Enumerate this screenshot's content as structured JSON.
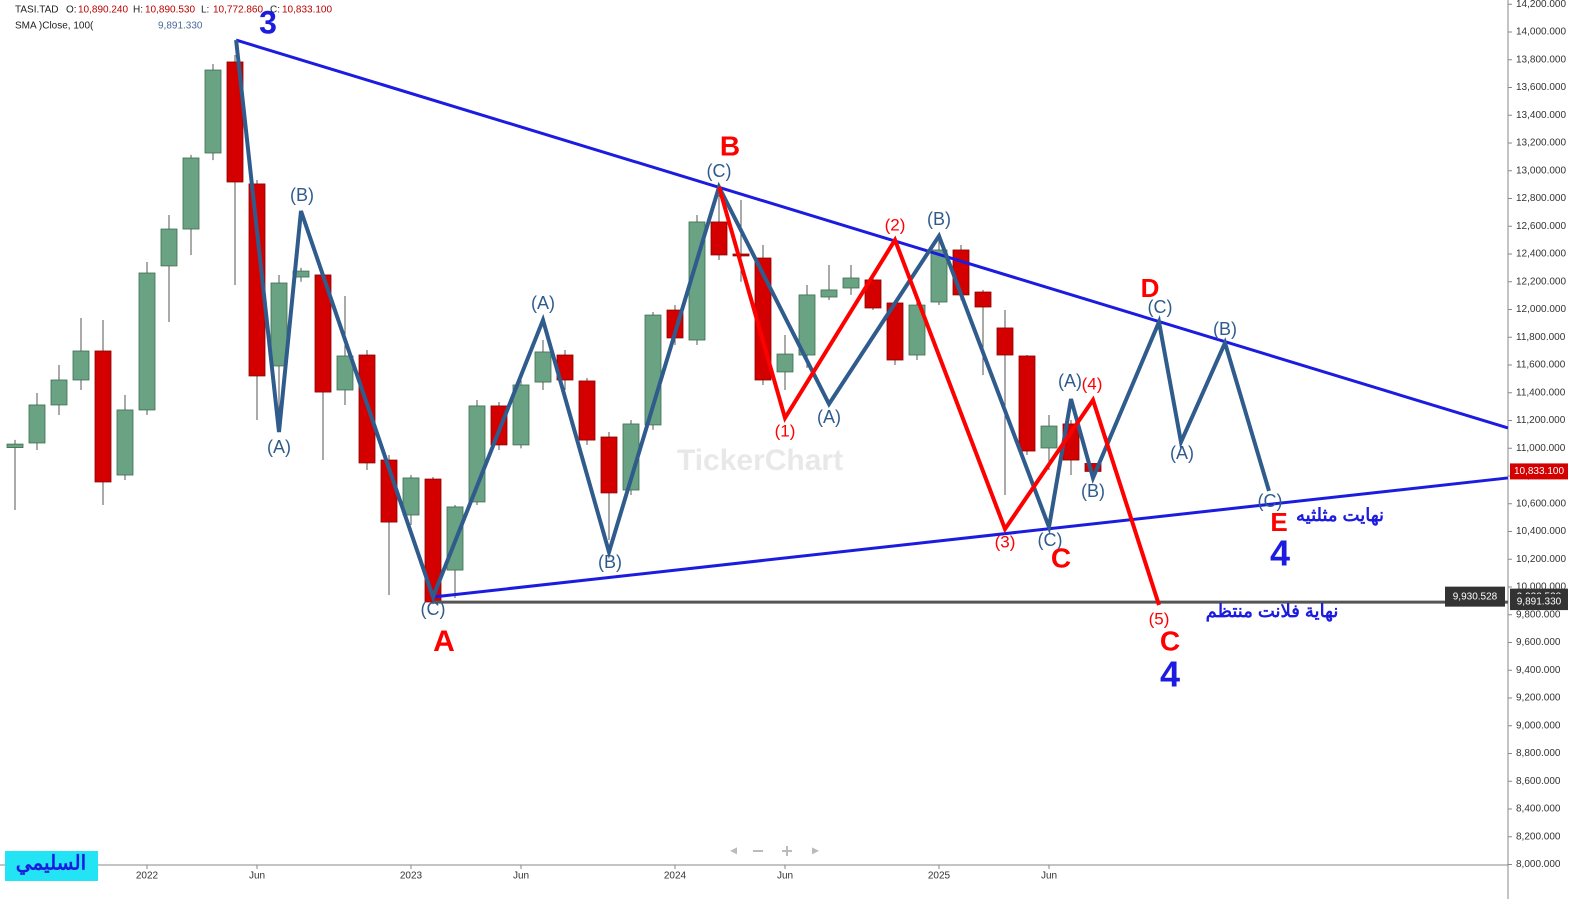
{
  "chart_data": {
    "type": "candlestick",
    "header": {
      "symbol": "TASI.TAD",
      "keys": [
        "O:",
        "H:",
        "L:",
        "C:"
      ],
      "last_labels": [
        "10,890.240",
        "10,890.530",
        "10,772.860",
        "10,833.100"
      ]
    },
    "sma": {
      "label": "SMA  )Close, 100(",
      "value": 9891.33,
      "value_label": "9,891.330",
      "color": "#555555"
    },
    "level": {
      "value": 9930.528,
      "label": "9,930.528"
    },
    "x": [
      null,
      null,
      null,
      null,
      null,
      null,
      "2022",
      null,
      null,
      null,
      null,
      "Jun",
      null,
      null,
      null,
      null,
      null,
      null,
      "2023",
      null,
      null,
      null,
      null,
      "Jun",
      null,
      null,
      null,
      null,
      null,
      null,
      "2024",
      null,
      null,
      null,
      null,
      "Jun",
      null,
      null,
      null,
      null,
      null,
      null,
      "2025",
      null,
      null,
      null,
      null,
      "Jun",
      null,
      null
    ],
    "ohlc": [
      [
        11005,
        11060,
        10555,
        11030
      ],
      [
        11038,
        11398,
        10987,
        11312
      ],
      [
        11312,
        11600,
        11240,
        11492
      ],
      [
        11492,
        11939,
        11420,
        11701
      ],
      [
        11701,
        11924,
        10591,
        10757
      ],
      [
        10807,
        11384,
        10771,
        11276
      ],
      [
        11276,
        12342,
        11240,
        12263
      ],
      [
        12314,
        12681,
        11910,
        12580
      ],
      [
        12580,
        13114,
        12393,
        13092
      ],
      [
        13128,
        13769,
        13077,
        13726
      ],
      [
        13784,
        13834,
        12177,
        12919
      ],
      [
        12905,
        12933,
        11204,
        11521
      ],
      [
        11593,
        12249,
        11240,
        12191
      ],
      [
        12234,
        12300,
        12200,
        12277
      ],
      [
        12249,
        12285,
        10915,
        11405
      ],
      [
        11420,
        12097,
        11312,
        11665
      ],
      [
        11672,
        11708,
        10843,
        10894
      ],
      [
        10915,
        10951,
        9942,
        10468
      ],
      [
        10519,
        10807,
        10447,
        10786
      ],
      [
        10778,
        10793,
        9877,
        9892
      ],
      [
        10122,
        10591,
        9921,
        10577
      ],
      [
        10613,
        11348,
        10591,
        11305
      ],
      [
        11305,
        11333,
        10987,
        11024
      ],
      [
        11024,
        11492,
        10999,
        11456
      ],
      [
        11477,
        11780,
        11420,
        11694
      ],
      [
        11672,
        11708,
        11420,
        11492
      ],
      [
        11485,
        11506,
        11024,
        11059
      ],
      [
        11081,
        11117,
        10339,
        10678
      ],
      [
        10699,
        11204,
        10663,
        11175
      ],
      [
        11168,
        11982,
        11132,
        11960
      ],
      [
        11996,
        12032,
        11744,
        11795
      ],
      [
        11780,
        12681,
        11744,
        12631
      ],
      [
        12631,
        12825,
        12357,
        12393
      ],
      [
        12400,
        12789,
        12200,
        12386
      ],
      [
        12371,
        12465,
        11456,
        11492
      ],
      [
        11550,
        11816,
        11420,
        11679
      ],
      [
        11672,
        12177,
        11578,
        12105
      ],
      [
        12090,
        12321,
        12068,
        12141
      ],
      [
        12155,
        12321,
        12105,
        12227
      ],
      [
        12213,
        12249,
        11996,
        12011
      ],
      [
        12047,
        12068,
        11600,
        11636
      ],
      [
        11672,
        12068,
        11636,
        12032
      ],
      [
        12054,
        12501,
        12032,
        12429
      ],
      [
        12429,
        12465,
        12068,
        12105
      ],
      [
        12126,
        12141,
        11528,
        12018
      ],
      [
        11867,
        11996,
        10663,
        11672
      ],
      [
        11665,
        11672,
        10951,
        10980
      ],
      [
        11002,
        11240,
        10843,
        11160
      ],
      [
        11175,
        11204,
        10807,
        10915
      ],
      [
        10890.24,
        10890.53,
        10772.86,
        10833.1
      ]
    ],
    "up_color": "#6aa383",
    "down_color": "#d40000",
    "ylim": [
      7990,
      14230
    ],
    "yticks": [
      {
        "value": 8000,
        "label": "8,000.000"
      },
      {
        "value": 8200,
        "label": "8,200.000"
      },
      {
        "value": 8400,
        "label": "8,400.000"
      },
      {
        "value": 8600,
        "label": "8,600.000"
      },
      {
        "value": 8800,
        "label": "8,800.000"
      },
      {
        "value": 9000,
        "label": "9,000.000"
      },
      {
        "value": 9200,
        "label": "9,200.000"
      },
      {
        "value": 9400,
        "label": "9,400.000"
      },
      {
        "value": 9600,
        "label": "9,600.000"
      },
      {
        "value": 9800,
        "label": "9,800.000"
      },
      {
        "value": 10000,
        "label": "10,000.000"
      },
      {
        "value": 10200,
        "label": "10,200.000"
      },
      {
        "value": 10400,
        "label": "10,400.000"
      },
      {
        "value": 10600,
        "label": "10,600.000"
      },
      {
        "value": 10800,
        "label": "10,800.000"
      },
      {
        "value": 11000,
        "label": "11,000.000"
      },
      {
        "value": 11200,
        "label": "11,200.000"
      },
      {
        "value": 11400,
        "label": "11,400.000"
      },
      {
        "value": 11600,
        "label": "11,600.000"
      },
      {
        "value": 11800,
        "label": "11,800.000"
      },
      {
        "value": 12000,
        "label": "12,000.000"
      },
      {
        "value": 12200,
        "label": "12,200.000"
      },
      {
        "value": 12400,
        "label": "12,400.000"
      },
      {
        "value": 12600,
        "label": "12,600.000"
      },
      {
        "value": 12800,
        "label": "12,800.000"
      },
      {
        "value": 13000,
        "label": "13,000.000"
      },
      {
        "value": 13200,
        "label": "13,200.000"
      },
      {
        "value": 13400,
        "label": "13,400.000"
      },
      {
        "value": 13600,
        "label": "13,600.000"
      },
      {
        "value": 13800,
        "label": "13,800.000"
      },
      {
        "value": 14000,
        "label": "14,000.000"
      },
      {
        "value": 14200,
        "label": "14,200.000"
      }
    ],
    "drawings": [
      {
        "color": "#1c1ce0",
        "x": [
          10.05,
          67.86
        ],
        "y": [
          13942,
          11146
        ]
      },
      {
        "color": "#1c1ce0",
        "x": [
          19,
          67.86
        ],
        "y": [
          9928,
          10786
        ]
      },
      {
        "color": "#2f5c8c",
        "x": [
          10.05,
          12,
          13,
          19,
          24,
          27,
          32,
          37,
          42,
          47,
          48,
          49,
          52,
          53,
          55,
          57
        ],
        "y": [
          13942,
          11117,
          12710,
          9928,
          11924,
          10252,
          12883,
          11319,
          12530,
          10432,
          11355,
          10786,
          11910,
          11045,
          11759,
          10692
        ]
      },
      {
        "color": "#ff0000",
        "x": [
          32,
          35,
          40,
          45,
          49,
          52
        ],
        "y": [
          12883,
          11218,
          12501,
          10418,
          11348,
          9870
        ]
      }
    ],
    "wave_labels": [
      {
        "text": "3",
        "color": "#1c1ce0"
      },
      {
        "text": "(B)",
        "color": "#2f5c8c"
      },
      {
        "text": "(A)",
        "color": "#2f5c8c"
      },
      {
        "text": "(C)",
        "color": "#2f5c8c"
      },
      {
        "text": "A",
        "color": "#ff0000"
      },
      {
        "text": "(A)",
        "color": "#2f5c8c"
      },
      {
        "text": "(B)",
        "color": "#2f5c8c"
      },
      {
        "text": "B",
        "color": "#ff0000"
      },
      {
        "text": "(C)",
        "color": "#2f5c8c"
      },
      {
        "text": "(1)",
        "color": "#ff0000"
      },
      {
        "text": "(A)",
        "color": "#2f5c8c"
      },
      {
        "text": "(2)",
        "color": "#ff0000"
      },
      {
        "text": "(B)",
        "color": "#2f5c8c"
      },
      {
        "text": "(3)",
        "color": "#ff0000"
      },
      {
        "text": "(C)",
        "color": "#2f5c8c"
      },
      {
        "text": "C",
        "color": "#ff0000"
      },
      {
        "text": "(A)",
        "color": "#2f5c8c"
      },
      {
        "text": "(4)",
        "color": "#ff0000"
      },
      {
        "text": "(B)",
        "color": "#2f5c8c"
      },
      {
        "text": "D",
        "color": "#ff0000"
      },
      {
        "text": "(C)",
        "color": "#2f5c8c"
      },
      {
        "text": "(B)",
        "color": "#2f5c8c"
      },
      {
        "text": "(A)",
        "color": "#2f5c8c"
      },
      {
        "text": "(C)",
        "color": "#2f5c8c"
      },
      {
        "text": "E",
        "color": "#ff0000"
      },
      {
        "text": "4",
        "color": "#1c1ce0"
      },
      {
        "text": "(5)",
        "color": "#ff0000"
      },
      {
        "text": "C",
        "color": "#ff0000"
      },
      {
        "text": "4",
        "color": "#1c1ce0"
      },
      {
        "text": "نهايت مثلثيه",
        "color": "#1c1ce0"
      },
      {
        "text": "نهاية فلانت منتظم",
        "color": "#1c1ce0"
      }
    ],
    "watermark": "TickerChart",
    "signature": "السليمي"
  }
}
